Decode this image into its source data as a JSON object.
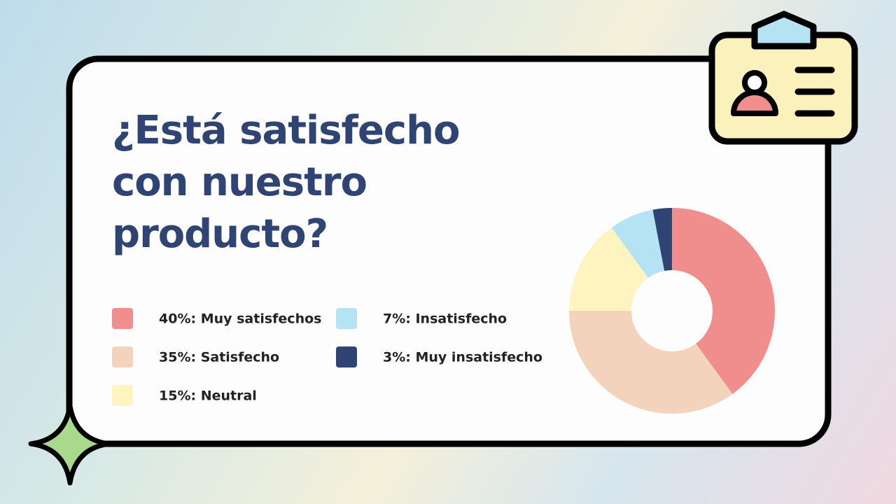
{
  "chart_data": {
    "type": "donut",
    "title": "¿Está satisfecho con nuestro producto?",
    "categories": [
      "40%: Muy satisfechos",
      "35%: Satisfecho",
      "15%: Neutral",
      "7%: Insatisfecho",
      "3%: Muy insatisfecho"
    ],
    "values": [
      40,
      35,
      15,
      7,
      3
    ],
    "colors": [
      "#f08e8e",
      "#f3d3bb",
      "#fdf4c0",
      "#b6e3f4",
      "#2f4472"
    ]
  }
}
